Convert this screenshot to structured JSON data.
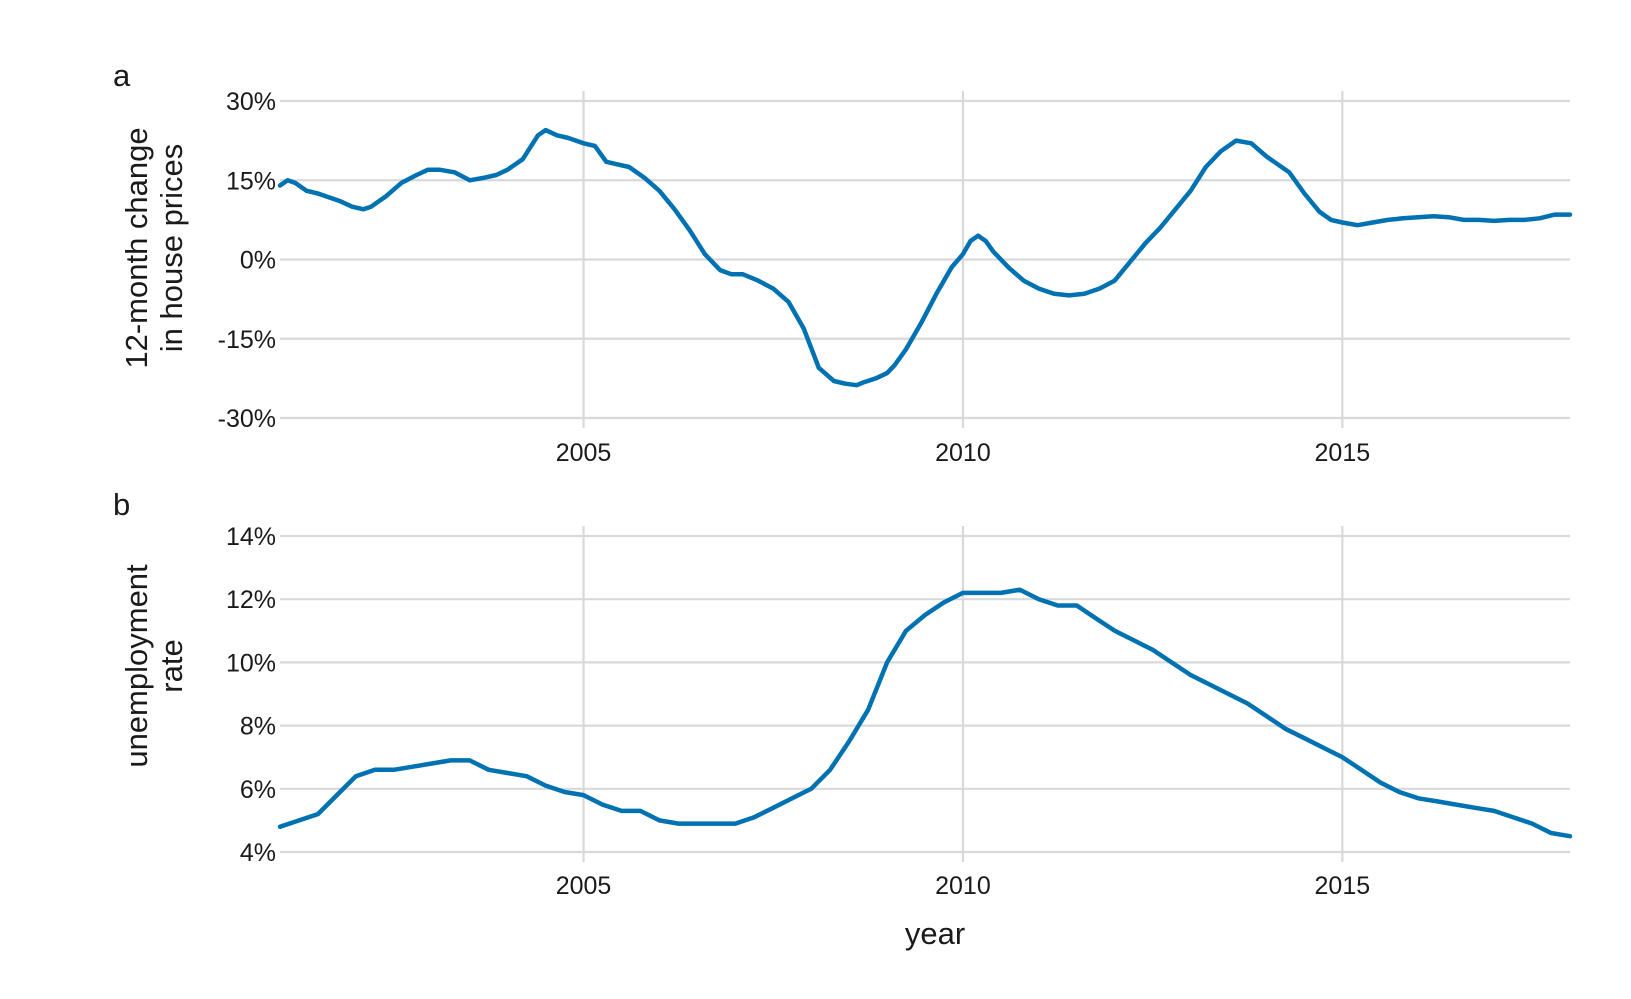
{
  "colors": {
    "line": "#0072b2",
    "grid": "#d9d9d9",
    "text": "#1a1a1a"
  },
  "chart_data": [
    {
      "type": "line",
      "panel_tag": "a",
      "title": "",
      "xlabel": "",
      "ylabel_lines": [
        "12-month change",
        "in house prices"
      ],
      "xlim": [
        2001.0,
        2018.0
      ],
      "ylim": [
        -30,
        30
      ],
      "x_ticks": [
        2005,
        2010,
        2015
      ],
      "x_tick_labels": [
        "2005",
        "2010",
        "2015"
      ],
      "y_ticks": [
        -30,
        -15,
        0,
        15,
        30
      ],
      "y_tick_labels": [
        "-30%",
        "-15%",
        "0%",
        "15%",
        "30%"
      ],
      "grid": true,
      "legend": "none",
      "series": [
        {
          "x": [
            2001.0,
            2001.1,
            2001.2,
            2001.35,
            2001.5,
            2001.8,
            2001.95,
            2002.1,
            2002.2,
            2002.4,
            2002.6,
            2002.8,
            2002.95,
            2003.1,
            2003.3,
            2003.5,
            2003.7,
            2003.85,
            2004.0,
            2004.2,
            2004.4,
            2004.5,
            2004.65,
            2004.8,
            2005.0,
            2005.15,
            2005.3,
            2005.45,
            2005.6,
            2005.8,
            2006.0,
            2006.2,
            2006.4,
            2006.6,
            2006.8,
            2006.95,
            2007.1,
            2007.3,
            2007.5,
            2007.7,
            2007.9,
            2008.1,
            2008.3,
            2008.45,
            2008.6,
            2008.7,
            2008.85,
            2009.0,
            2009.1,
            2009.25,
            2009.45,
            2009.65,
            2009.85,
            2010.0,
            2010.1,
            2010.2,
            2010.3,
            2010.4,
            2010.6,
            2010.8,
            2011.0,
            2011.2,
            2011.4,
            2011.6,
            2011.8,
            2012.0,
            2012.2,
            2012.4,
            2012.6,
            2012.8,
            2013.0,
            2013.2,
            2013.4,
            2013.6,
            2013.8,
            2014.0,
            2014.1,
            2014.3,
            2014.5,
            2014.7,
            2014.85,
            2015.0,
            2015.2,
            2015.4,
            2015.6,
            2015.8,
            2016.0,
            2016.2,
            2016.4,
            2016.6,
            2016.8,
            2017.0,
            2017.2,
            2017.4,
            2017.6,
            2017.8,
            2018.0
          ],
          "y": [
            14.0,
            15.0,
            14.5,
            13.0,
            12.5,
            11.0,
            10.0,
            9.5,
            10.0,
            12.0,
            14.5,
            16.0,
            17.0,
            17.0,
            16.5,
            15.0,
            15.5,
            16.0,
            17.0,
            19.0,
            23.5,
            24.5,
            23.5,
            23.0,
            22.0,
            21.5,
            18.5,
            18.0,
            17.5,
            15.5,
            13.0,
            9.5,
            5.5,
            1.0,
            -2.0,
            -2.8,
            -2.8,
            -4.0,
            -5.5,
            -8.0,
            -13.0,
            -20.5,
            -23.0,
            -23.5,
            -23.8,
            -23.2,
            -22.5,
            -21.5,
            -20.0,
            -17.0,
            -12.0,
            -6.5,
            -1.5,
            1.0,
            3.5,
            4.5,
            3.5,
            1.5,
            -1.5,
            -4.0,
            -5.5,
            -6.5,
            -6.8,
            -6.5,
            -5.5,
            -4.0,
            -0.5,
            3.0,
            6.0,
            9.5,
            13.0,
            17.5,
            20.5,
            22.5,
            22.0,
            19.5,
            18.5,
            16.5,
            12.5,
            9.0,
            7.5,
            7.0,
            6.5,
            7.0,
            7.5,
            7.8,
            8.0,
            8.2,
            8.0,
            7.5,
            7.5,
            7.3,
            7.5,
            7.5,
            7.8,
            8.5,
            8.5
          ]
        }
      ]
    },
    {
      "type": "line",
      "panel_tag": "b",
      "title": "",
      "xlabel": "year",
      "ylabel_lines": [
        "unemployment",
        "rate"
      ],
      "xlim": [
        2001.0,
        2018.0
      ],
      "ylim": [
        4,
        14
      ],
      "x_ticks": [
        2005,
        2010,
        2015
      ],
      "x_tick_labels": [
        "2005",
        "2010",
        "2015"
      ],
      "y_ticks": [
        4,
        6,
        8,
        10,
        12,
        14
      ],
      "y_tick_labels": [
        "4%",
        "6%",
        "8%",
        "10%",
        "12%",
        "14%"
      ],
      "grid": true,
      "legend": "none",
      "series": [
        {
          "x": [
            2001.0,
            2001.5,
            2001.75,
            2002.0,
            2002.25,
            2002.5,
            2002.75,
            2003.0,
            2003.25,
            2003.5,
            2003.75,
            2004.0,
            2004.25,
            2004.5,
            2004.75,
            2005.0,
            2005.25,
            2005.5,
            2005.75,
            2006.0,
            2006.25,
            2006.5,
            2006.75,
            2007.0,
            2007.25,
            2007.5,
            2007.75,
            2008.0,
            2008.25,
            2008.5,
            2008.75,
            2009.0,
            2009.25,
            2009.5,
            2009.75,
            2010.0,
            2010.25,
            2010.5,
            2010.75,
            2011.0,
            2011.25,
            2011.5,
            2011.75,
            2012.0,
            2012.25,
            2012.5,
            2012.75,
            2013.0,
            2013.25,
            2013.5,
            2013.75,
            2014.0,
            2014.25,
            2014.5,
            2014.75,
            2015.0,
            2015.25,
            2015.5,
            2015.75,
            2016.0,
            2016.25,
            2016.5,
            2016.75,
            2017.0,
            2017.25,
            2017.5,
            2017.75,
            2018.0
          ],
          "y": [
            4.8,
            5.2,
            5.8,
            6.4,
            6.6,
            6.6,
            6.7,
            6.8,
            6.9,
            6.9,
            6.6,
            6.5,
            6.4,
            6.1,
            5.9,
            5.8,
            5.5,
            5.3,
            5.3,
            5.0,
            4.9,
            4.9,
            4.9,
            4.9,
            5.1,
            5.4,
            5.7,
            6.0,
            6.6,
            7.5,
            8.5,
            10.0,
            11.0,
            11.5,
            11.9,
            12.2,
            12.2,
            12.2,
            12.3,
            12.0,
            11.8,
            11.8,
            11.4,
            11.0,
            10.7,
            10.4,
            10.0,
            9.6,
            9.3,
            9.0,
            8.7,
            8.3,
            7.9,
            7.6,
            7.3,
            7.0,
            6.6,
            6.2,
            5.9,
            5.7,
            5.6,
            5.5,
            5.4,
            5.3,
            5.1,
            4.9,
            4.6,
            4.5
          ]
        }
      ]
    }
  ]
}
